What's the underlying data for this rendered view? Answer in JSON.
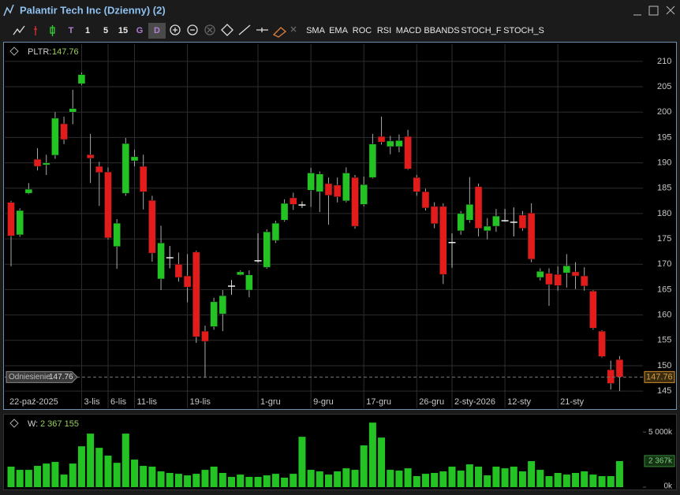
{
  "window": {
    "title": "Palantir Tech Inc (Dzienny) (2)",
    "toolbar": [
      "T",
      "1",
      "5",
      "15",
      "G",
      "D",
      "SMA",
      "EMA",
      "ROC",
      "RSI",
      "MACD",
      "BBANDS",
      "STOCH_F",
      "STOCH_S"
    ]
  },
  "chart_data": [
    {
      "type": "candlestick",
      "symbol": "PLTR:",
      "reference_label": "Odniesienie",
      "up_color": "#22c322",
      "down_color": "#e21b1b",
      "grid": true,
      "categories": [
        "22-paź-2025",
        null,
        null,
        null,
        null,
        null,
        null,
        null,
        "3-lis",
        null,
        null,
        "6-lis",
        null,
        null,
        "11-lis",
        null,
        null,
        null,
        null,
        null,
        "19-lis",
        null,
        null,
        null,
        null,
        null,
        null,
        null,
        "1-gru",
        null,
        null,
        null,
        null,
        null,
        "9-gru",
        null,
        null,
        null,
        null,
        null,
        "17-gru",
        null,
        null,
        null,
        null,
        null,
        "26-gru",
        null,
        null,
        null,
        "2-sty-2026",
        null,
        null,
        null,
        null,
        null,
        "12-sty",
        null,
        null,
        null,
        null,
        null,
        "21-sty",
        null,
        null,
        null,
        null,
        null,
        null,
        null
      ],
      "open": [
        182.2,
        175.8,
        184.0,
        190.7,
        189.6,
        191.5,
        197.7,
        200.0,
        205.6,
        191.6,
        189.3,
        188.2,
        173.5,
        184.0,
        190.4,
        189.3,
        182.6,
        167.1,
        171.3,
        170.0,
        167.7,
        172.4,
        156.8,
        157.7,
        160.2,
        165.7,
        167.9,
        164.9,
        170.7,
        169.4,
        174.7,
        178.7,
        183.1,
        181.7,
        184.6,
        184.3,
        185.9,
        185.6,
        182.5,
        187.1,
        181.8,
        187.1,
        195.2,
        193.2,
        193.2,
        195.2,
        187.1,
        184.3,
        181.4,
        181.4,
        174.3,
        176.6,
        178.7,
        185.3,
        176.6,
        177.5,
        178.6,
        178.3,
        179.7,
        180.1,
        167.4,
        168.2,
        168.0,
        168.3,
        168.5,
        167.7,
        164.7,
        156.8,
        149.2,
        151.2
      ],
      "high": [
        182.5,
        181.0,
        186.0,
        192.9,
        191.6,
        200.0,
        199.1,
        204.4,
        207.8,
        195.7,
        190.2,
        189.1,
        178.9,
        194.9,
        192.6,
        191.6,
        183.5,
        177.6,
        173.6,
        172.3,
        172.0,
        172.7,
        157.9,
        163.4,
        164.9,
        166.9,
        168.8,
        168.8,
        176.1,
        176.9,
        178.6,
        182.8,
        184.1,
        182.4,
        189.0,
        188.3,
        187.1,
        187.1,
        189.1,
        187.6,
        187.3,
        195.7,
        199.1,
        195.3,
        195.6,
        196.5,
        187.6,
        184.9,
        182.2,
        182.0,
        176.1,
        180.5,
        187.2,
        185.9,
        179.1,
        180.9,
        180.9,
        181.2,
        180.5,
        182.0,
        169.2,
        169.2,
        169.6,
        172.0,
        170.4,
        169.4,
        164.9,
        157.0,
        151.0,
        151.9
      ],
      "low": [
        169.6,
        175.4,
        183.8,
        188.5,
        187.6,
        190.8,
        193.7,
        197.6,
        205.3,
        186.0,
        181.5,
        174.9,
        169.1,
        183.5,
        189.3,
        180.8,
        170.5,
        164.9,
        169.2,
        166.6,
        162.5,
        154.5,
        147.6,
        157.1,
        156.8,
        164.0,
        167.8,
        163.5,
        170.3,
        169.1,
        174.2,
        178.4,
        180.7,
        181.1,
        181.3,
        180.3,
        177.8,
        182.2,
        182.2,
        177.0,
        181.4,
        186.9,
        193.6,
        191.7,
        192.1,
        188.6,
        183.5,
        180.6,
        177.1,
        166.1,
        169.3,
        175.8,
        178.2,
        175.5,
        174.9,
        176.4,
        178.4,
        175.5,
        176.6,
        170.4,
        166.8,
        161.8,
        164.8,
        165.4,
        165.1,
        164.8,
        157.1,
        151.6,
        145.3,
        145.0
      ],
      "close": [
        175.6,
        180.6,
        184.8,
        189.3,
        190.0,
        198.8,
        194.6,
        200.7,
        207.4,
        190.9,
        188.1,
        175.2,
        178.1,
        193.8,
        191.2,
        184.3,
        172.2,
        174.2,
        171.4,
        167.4,
        165.5,
        155.7,
        154.8,
        162.6,
        163.8,
        165.8,
        168.5,
        167.9,
        170.8,
        176.4,
        178.1,
        182.0,
        181.8,
        181.8,
        188.0,
        187.8,
        183.6,
        183.3,
        188.0,
        177.5,
        185.7,
        193.7,
        194.1,
        194.3,
        194.4,
        188.8,
        184.3,
        181.1,
        178.0,
        168.0,
        174.4,
        180.0,
        181.8,
        177.1,
        177.5,
        179.5,
        178.7,
        178.4,
        177.1,
        171.0,
        168.6,
        166.0,
        165.8,
        169.7,
        167.7,
        165.7,
        157.4,
        151.8,
        146.5,
        147.76
      ],
      "ylim": [
        141.6,
        213.4
      ],
      "yticks": [
        145,
        150,
        155,
        160,
        165,
        170,
        175,
        180,
        185,
        190,
        195,
        200,
        205,
        210
      ]
    },
    {
      "type": "bar",
      "name": "W:",
      "color": "#22c322",
      "values": [
        1860000,
        1570000,
        1570000,
        1930000,
        2140000,
        2290000,
        1140000,
        2140000,
        3710000,
        4860000,
        3570000,
        2860000,
        2210000,
        4860000,
        2500000,
        1930000,
        1860000,
        1430000,
        1290000,
        1210000,
        1070000,
        1210000,
        1570000,
        1860000,
        1290000,
        930000,
        1140000,
        930000,
        930000,
        1070000,
        1210000,
        860000,
        1210000,
        4570000,
        1570000,
        1430000,
        1140000,
        1430000,
        1710000,
        1570000,
        3790000,
        5860000,
        4500000,
        1570000,
        1500000,
        1710000,
        1000000,
        1210000,
        1290000,
        1430000,
        1860000,
        1500000,
        2070000,
        1860000,
        1070000,
        1860000,
        1710000,
        1860000,
        1430000,
        2360000,
        1570000,
        1000000,
        1290000,
        1140000,
        1290000,
        1430000,
        1140000,
        1000000,
        1000000,
        2367155
      ],
      "last_value_labels": [
        "2 367 155",
        "2 367k"
      ],
      "ylim": [
        0,
        6300000
      ],
      "yticks": [
        {
          "value": 0,
          "label": "0k"
        },
        {
          "value": 5000000,
          "label": "5 000k"
        }
      ]
    }
  ]
}
